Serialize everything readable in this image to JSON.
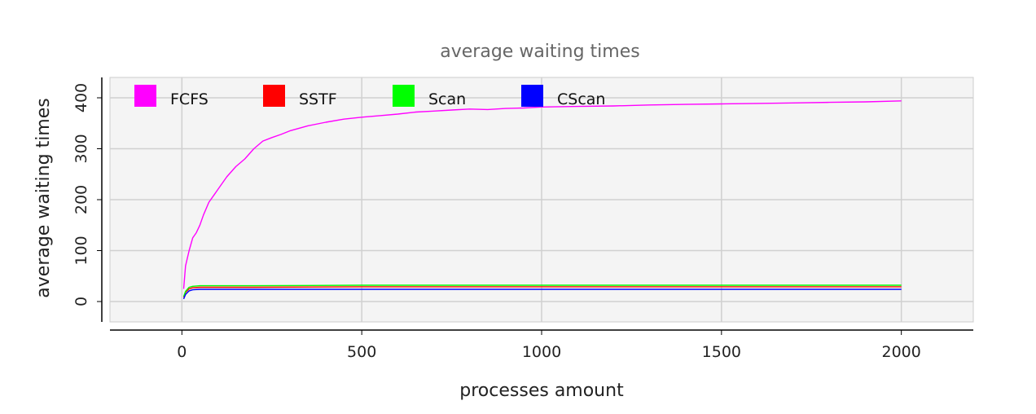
{
  "chart_data": {
    "type": "line",
    "title": "average waiting times",
    "xlabel": "processes amount",
    "ylabel": "average waiting times",
    "xlim": [
      -200,
      2200
    ],
    "ylim": [
      -40,
      440
    ],
    "xticks": [
      0,
      500,
      1000,
      1500,
      2000
    ],
    "yticks": [
      0,
      100,
      200,
      300,
      400
    ],
    "grid": true,
    "legend_position": "top-left, inside plot, horizontal",
    "series": [
      {
        "name": "FCFS",
        "color": "#ff00ff",
        "x": [
          5,
          10,
          20,
          30,
          40,
          50,
          60,
          75,
          90,
          100,
          125,
          150,
          175,
          200,
          225,
          250,
          275,
          300,
          350,
          400,
          450,
          500,
          550,
          600,
          650,
          700,
          750,
          800,
          850,
          900,
          950,
          1000,
          1100,
          1200,
          1300,
          1400,
          1500,
          1600,
          1700,
          1800,
          1900,
          2000
        ],
        "y": [
          25,
          70,
          100,
          125,
          135,
          150,
          170,
          195,
          210,
          220,
          245,
          265,
          280,
          300,
          315,
          322,
          328,
          335,
          345,
          352,
          358,
          362,
          365,
          368,
          372,
          374,
          376,
          378,
          377,
          379,
          380,
          382,
          383,
          384,
          386,
          387,
          388,
          389,
          390,
          391,
          392,
          394
        ]
      },
      {
        "name": "SSTF",
        "color": "#ff0000",
        "x": [
          5,
          10,
          20,
          30,
          50,
          100,
          200,
          500,
          1000,
          1500,
          2000
        ],
        "y": [
          8,
          18,
          25,
          27,
          28,
          28,
          28,
          29,
          29,
          29,
          29
        ]
      },
      {
        "name": "Scan",
        "color": "#00ff00",
        "x": [
          5,
          10,
          20,
          30,
          50,
          100,
          200,
          500,
          1000,
          1500,
          2000
        ],
        "y": [
          10,
          20,
          28,
          30,
          31,
          31,
          31,
          32,
          32,
          32,
          32
        ]
      },
      {
        "name": "CScan",
        "color": "#0000ff",
        "x": [
          5,
          10,
          20,
          30,
          50,
          100,
          200,
          500,
          1000,
          1500,
          2000
        ],
        "y": [
          5,
          14,
          21,
          23,
          24,
          24,
          24,
          24,
          24,
          24,
          24
        ]
      }
    ]
  }
}
